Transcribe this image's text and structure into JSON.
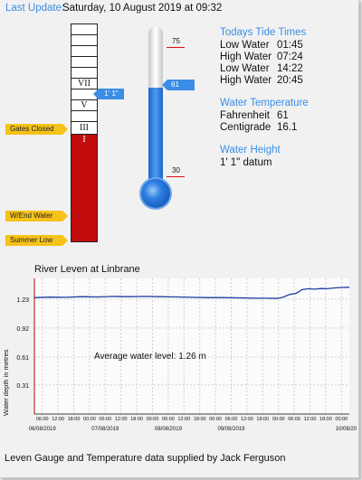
{
  "last_update": {
    "label": "Last Update:",
    "value": "Saturday, 10 August 2019 at 09:32"
  },
  "gauge": {
    "roman_labels": [
      "VII",
      "V",
      "III",
      "I"
    ],
    "flags": {
      "gates_closed": "Gates Closed",
      "w_end_water": "W/End Water",
      "summer_low": "Summer Low"
    },
    "current_level": "1' 1\""
  },
  "thermometer": {
    "max_label": "75",
    "min_label": "30",
    "current": "61",
    "min": 30,
    "max": 75,
    "value": 61
  },
  "tide": {
    "title": "Todays Tide Times",
    "rows": [
      {
        "type": "Low Water",
        "time": "01:45"
      },
      {
        "type": "High Water",
        "time": "07:24"
      },
      {
        "type": "Low Water",
        "time": "14:22"
      },
      {
        "type": "High Water",
        "time": "20:45"
      }
    ]
  },
  "water_temperature": {
    "title": "Water Temperature",
    "rows": [
      {
        "unit": "Fahrenheit",
        "value": "61"
      },
      {
        "unit": "Centigrade",
        "value": "16.1"
      }
    ]
  },
  "water_height": {
    "title": "Water Height",
    "value": "1' 1\"  datum"
  },
  "chart_data": {
    "type": "line",
    "title": "River Leven at Linbrane",
    "ylabel": "Water depth in metres",
    "annotation": "Average water level: 1.26 m",
    "y_ticks": [
      "1.23",
      "0.92",
      "0.61",
      "0.31"
    ],
    "y_tick_values": [
      1.23,
      0.92,
      0.61,
      0.31
    ],
    "ylim": [
      0,
      1.45
    ],
    "x_tick_labels": [
      "06:00",
      "12:00",
      "18:00",
      "00:00",
      "06:00",
      "12:00",
      "18:00",
      "00:00",
      "06:00",
      "12:00",
      "18:00",
      "00:00",
      "06:00",
      "12:00",
      "18:00",
      "00:00",
      "06:00",
      "12:00",
      "18:00",
      "00:00"
    ],
    "date_labels": [
      "06/08/2019",
      "07/08/2019",
      "08/08/2019",
      "09/08/2019",
      "10/08/20"
    ],
    "xlim": [
      0,
      100
    ],
    "series": [
      {
        "values": [
          [
            0,
            1.245
          ],
          [
            5,
            1.25
          ],
          [
            10,
            1.248
          ],
          [
            15,
            1.255
          ],
          [
            20,
            1.252
          ],
          [
            25,
            1.258
          ],
          [
            30,
            1.255
          ],
          [
            35,
            1.258
          ],
          [
            40,
            1.255
          ],
          [
            45,
            1.252
          ],
          [
            50,
            1.248
          ],
          [
            55,
            1.245
          ],
          [
            60,
            1.245
          ],
          [
            65,
            1.242
          ],
          [
            70,
            1.238
          ],
          [
            74,
            1.238
          ],
          [
            77,
            1.235
          ],
          [
            79,
            1.25
          ],
          [
            81,
            1.278
          ],
          [
            83,
            1.29
          ],
          [
            84,
            1.308
          ],
          [
            85,
            1.33
          ],
          [
            87,
            1.34
          ],
          [
            89,
            1.335
          ],
          [
            91,
            1.342
          ],
          [
            93,
            1.34
          ],
          [
            95,
            1.348
          ],
          [
            97,
            1.352
          ],
          [
            100,
            1.355
          ]
        ]
      }
    ]
  },
  "footer": "Leven Gauge and Temperature data supplied by Jack Ferguson",
  "colors": {
    "accent": "#3a8ee6",
    "gauge_red": "#c30d0d",
    "flag": "#f5c21a",
    "series": "#1f3fa0"
  }
}
